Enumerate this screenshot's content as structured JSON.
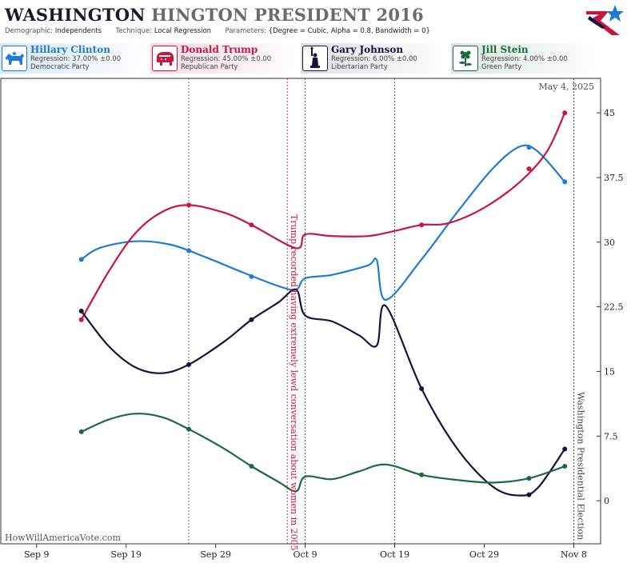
{
  "header": {
    "title_part1": "WASHINGTON",
    "title_part2": "HINGTON PRESIDENT 2016",
    "demographic_label": "Demographic:",
    "demographic_value": "Independents",
    "technique_label": "Technique:",
    "technique_value": "Local Regression",
    "parameters_label": "Parameters:",
    "parameters_value": "{Degree = Cubic, Alpha = 0.8, Bandwidth = 0}"
  },
  "candidates": [
    {
      "name": "Hillary Clinton",
      "regression": "Regression: 37.00% ±0.00",
      "party": "Democratic Party",
      "color": "#1f7bd6",
      "icon": "donkey-icon"
    },
    {
      "name": "Donald Trump",
      "regression": "Regression: 45.00% ±0.00",
      "party": "Republican Party",
      "color": "#c8173f",
      "icon": "elephant-icon"
    },
    {
      "name": "Gary Johnson",
      "regression": "Regression: 6.00% ±0.00",
      "party": "Libertarian Party",
      "color": "#1b1140",
      "icon": "statue-of-liberty-icon"
    },
    {
      "name": "Jill Stein",
      "regression": "Regression: 4.00% ±0.00",
      "party": "Green Party",
      "color": "#1a6b3c",
      "icon": "flower-icon"
    }
  ],
  "chart_data": {
    "type": "line",
    "date_label": "May 4, 2025",
    "watermark": "HowWillAmericaVote.com",
    "x_ticks": [
      "Sep 9",
      "Sep 19",
      "Sep 29",
      "Oct 9",
      "Oct 19",
      "Oct 29",
      "Nov 8"
    ],
    "x_range": [
      "2016-09-05",
      "2016-11-11"
    ],
    "ylim": [
      -5,
      49
    ],
    "y_ticks": [
      0,
      7.5,
      15,
      22.5,
      30,
      37.5,
      45
    ],
    "y_tick_labels": [
      "0",
      "7.5",
      "15",
      "22.5",
      "30",
      "37.5",
      "45"
    ],
    "annotations": [
      {
        "date": "2016-10-07",
        "label": "Trump recorded having extremely lewd conversation about women in 2005",
        "color": "#c8173f"
      },
      {
        "date": "2016-11-08",
        "label": "Washington Presidential Election",
        "color": "#444444"
      }
    ],
    "dashed_lines": [
      "2016-09-26",
      "2016-10-09",
      "2016-10-19"
    ],
    "series": [
      {
        "name": "Hillary Clinton",
        "color": "#1f7bd6",
        "points": [
          [
            "2016-09-14",
            28
          ],
          [
            "2016-09-26",
            29
          ],
          [
            "2016-10-03",
            26
          ],
          [
            "2016-11-03",
            41
          ],
          [
            "2016-11-07",
            37
          ]
        ],
        "curve": [
          [
            "2016-09-14",
            28
          ],
          [
            "2016-09-16",
            29.3
          ],
          [
            "2016-09-20",
            30.1
          ],
          [
            "2016-09-24",
            29.7
          ],
          [
            "2016-09-28",
            28.2
          ],
          [
            "2016-10-02",
            26.5
          ],
          [
            "2016-10-06",
            24.9
          ],
          [
            "2016-10-08",
            24.5
          ],
          [
            "2016-10-09",
            25.8
          ],
          [
            "2016-10-12",
            26.2
          ],
          [
            "2016-10-16",
            27.3
          ],
          [
            "2016-10-17",
            27.9
          ],
          [
            "2016-10-18",
            23.3
          ],
          [
            "2016-10-22",
            28.0
          ],
          [
            "2016-10-26",
            33.5
          ],
          [
            "2016-10-30",
            38.6
          ],
          [
            "2016-11-02",
            41.1
          ],
          [
            "2016-11-04",
            40.5
          ],
          [
            "2016-11-07",
            37
          ]
        ]
      },
      {
        "name": "Donald Trump",
        "color": "#c8173f",
        "points": [
          [
            "2016-09-14",
            21
          ],
          [
            "2016-09-26",
            34.3
          ],
          [
            "2016-10-03",
            32
          ],
          [
            "2016-10-22",
            32
          ],
          [
            "2016-11-03",
            38.5
          ],
          [
            "2016-11-07",
            45
          ]
        ],
        "curve": [
          [
            "2016-09-14",
            21
          ],
          [
            "2016-09-17",
            26.5
          ],
          [
            "2016-09-20",
            31
          ],
          [
            "2016-09-23",
            33.5
          ],
          [
            "2016-09-26",
            34.3
          ],
          [
            "2016-09-30",
            33.4
          ],
          [
            "2016-10-03",
            32
          ],
          [
            "2016-10-08",
            29.3
          ],
          [
            "2016-10-09",
            30.9
          ],
          [
            "2016-10-12",
            30.7
          ],
          [
            "2016-10-16",
            30.7
          ],
          [
            "2016-10-19",
            31.3
          ],
          [
            "2016-10-22",
            32
          ],
          [
            "2016-10-25",
            32.2
          ],
          [
            "2016-10-29",
            34
          ],
          [
            "2016-11-02",
            37
          ],
          [
            "2016-11-05",
            40.5
          ],
          [
            "2016-11-07",
            45
          ]
        ]
      },
      {
        "name": "Gary Johnson",
        "color": "#1b1140",
        "points": [
          [
            "2016-09-14",
            22
          ],
          [
            "2016-09-26",
            15.8
          ],
          [
            "2016-10-03",
            21
          ],
          [
            "2016-10-22",
            13
          ],
          [
            "2016-11-03",
            0.7
          ],
          [
            "2016-11-07",
            6
          ]
        ],
        "curve": [
          [
            "2016-09-14",
            22
          ],
          [
            "2016-09-17",
            18
          ],
          [
            "2016-09-20",
            15.5
          ],
          [
            "2016-09-23",
            14.8
          ],
          [
            "2016-09-26",
            15.8
          ],
          [
            "2016-09-30",
            18.5
          ],
          [
            "2016-10-03",
            21
          ],
          [
            "2016-10-06",
            23
          ],
          [
            "2016-10-08",
            24.5
          ],
          [
            "2016-10-09",
            21.5
          ],
          [
            "2016-10-12",
            20.8
          ],
          [
            "2016-10-15",
            19.2
          ],
          [
            "2016-10-17",
            18
          ],
          [
            "2016-10-18",
            22.6
          ],
          [
            "2016-10-22",
            13
          ],
          [
            "2016-10-26",
            6
          ],
          [
            "2016-10-30",
            1.6
          ],
          [
            "2016-11-02",
            0.6
          ],
          [
            "2016-11-04",
            1.5
          ],
          [
            "2016-11-07",
            6
          ]
        ]
      },
      {
        "name": "Jill Stein",
        "color": "#1a6b3c",
        "points": [
          [
            "2016-09-14",
            8
          ],
          [
            "2016-09-26",
            8.3
          ],
          [
            "2016-10-03",
            4
          ],
          [
            "2016-10-22",
            3
          ],
          [
            "2016-11-03",
            2.6
          ],
          [
            "2016-11-07",
            4
          ]
        ],
        "curve": [
          [
            "2016-09-14",
            8
          ],
          [
            "2016-09-17",
            9.4
          ],
          [
            "2016-09-20",
            10.1
          ],
          [
            "2016-09-23",
            9.7
          ],
          [
            "2016-09-26",
            8.3
          ],
          [
            "2016-09-30",
            6
          ],
          [
            "2016-10-03",
            4
          ],
          [
            "2016-10-06",
            2.2
          ],
          [
            "2016-10-08",
            1.1
          ],
          [
            "2016-10-09",
            2.8
          ],
          [
            "2016-10-12",
            2.5
          ],
          [
            "2016-10-15",
            3.4
          ],
          [
            "2016-10-18",
            4.2
          ],
          [
            "2016-10-22",
            3
          ],
          [
            "2016-10-26",
            2.4
          ],
          [
            "2016-10-30",
            2.1
          ],
          [
            "2016-11-03",
            2.6
          ],
          [
            "2016-11-07",
            4
          ]
        ]
      }
    ]
  }
}
